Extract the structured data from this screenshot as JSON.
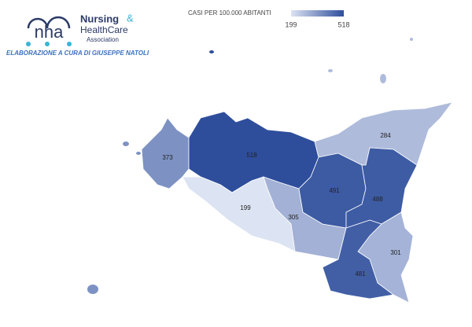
{
  "logo": {
    "letters": "nha",
    "line1": "Nursing",
    "ampersand": "&",
    "line2": "HealthCare",
    "line3": "Association"
  },
  "credit": "ELABORAZIONE A CURA DI GIUSEPPE NATOLI",
  "legend": {
    "title": "CASI PER 100.000 ABITANTI",
    "min": 199,
    "max": 518,
    "colors": [
      "#dce3f2",
      "#2e4e9c"
    ]
  },
  "regions": [
    {
      "value": 373
    },
    {
      "value": 518
    },
    {
      "value": 284
    },
    {
      "value": 199
    },
    {
      "value": 305
    },
    {
      "value": 491
    },
    {
      "value": 488
    },
    {
      "value": 301
    },
    {
      "value": 481
    }
  ]
}
